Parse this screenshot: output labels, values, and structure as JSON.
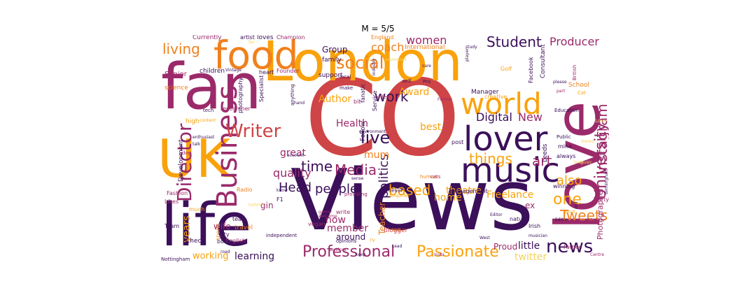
{
  "title": "M = 5/5",
  "palette": {
    "dark_purple": "#3b0f59",
    "magenta": "#9b2a6a",
    "red": "#cf4446",
    "orange": "#f0801c",
    "amber": "#f9a20c",
    "yellow": "#f4d35e"
  },
  "words": [
    "CO",
    "Views",
    "London",
    "life",
    "UK",
    "fan",
    "love",
    "food",
    "music",
    "lover",
    "world",
    "Business",
    "Director",
    "Writer",
    "news",
    "University",
    "Instagram",
    "live",
    "social",
    "Professional",
    "Passionate",
    "Head",
    "people",
    "Media",
    "things",
    "art",
    "based",
    "time",
    "work",
    "women",
    "Student",
    "Producer",
    "coach",
    "living",
    "one",
    "also",
    "Tweets",
    "New",
    "Digital",
    "quality",
    "politics",
    "Health",
    "Author",
    "Award",
    "mum",
    "best",
    "member",
    "now",
    "years",
    "learning",
    "working",
    "Freelance",
    "twitter",
    "little",
    "theatre",
    "wife",
    "gin",
    "great",
    "home",
    "ex",
    "Teacher",
    "Photographer",
    "around",
    "Group",
    "Manager",
    "Proud",
    "Currently",
    "artist",
    "loves",
    "Champion",
    "England",
    "International",
    "family",
    "Senior",
    "science",
    "children",
    "heart",
    "Founder",
    "support",
    "School",
    "Consultant",
    "Specialist",
    "photography",
    "Development",
    "Fashion",
    "Likes",
    "much",
    "Team",
    "Check",
    "English",
    "Nottingham",
    "Leeds",
    "Birmingham",
    "Lead",
    "blogger",
    "West",
    "musician",
    "Editor",
    "Irish",
    "City",
    "travel",
    "books",
    "sports",
    "tea",
    "vegan",
    "write",
    "NHS",
    "TV",
    "enquiries",
    "opinions",
    "always",
    "Education",
    "Public",
    "mine",
    "winning",
    "study",
    "player",
    "industry",
    "care",
    "Golf",
    "creative",
    "management",
    "natural",
    "independent",
    "services",
    "Insta",
    "human",
    "post",
    "cats",
    "Father",
    "Mother",
    "party",
    "Cat",
    "Centre",
    "old",
    "British",
    "please",
    "part",
    "Former",
    "Pro",
    "self",
    "local",
    "make",
    "fanatic",
    "bit",
    "Follow",
    "Service",
    "environment",
    "coffee",
    "account",
    "enthusiast",
    "talk",
    "dog",
    "researcher",
    "anything",
    "tech",
    "hand",
    "Vintage",
    "Radio",
    "runner",
    "F1",
    "gamer",
    "welcome",
    "providing",
    "never",
    "sense",
    "keep",
    "content",
    "Facebook",
    "road",
    "high",
    "gmail",
    "know",
    "Love",
    "music",
    "Views",
    "fan",
    "expressed",
    "long",
    "Editor"
  ]
}
